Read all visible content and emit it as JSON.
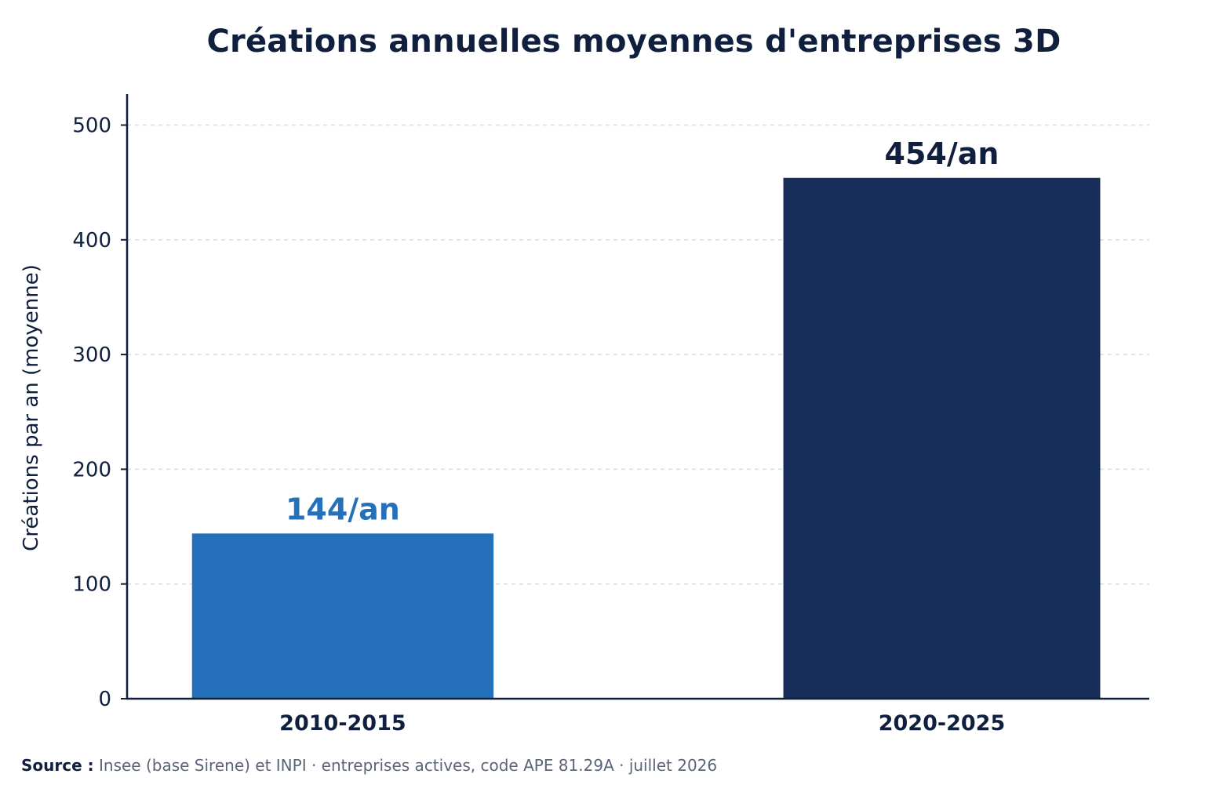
{
  "chart_data": {
    "type": "bar",
    "title": "Créations annuelles moyennes d'entreprises 3D",
    "xlabel": "",
    "ylabel": "Créations par an (moyenne)",
    "categories": [
      "2010-2015",
      "2020-2025"
    ],
    "values": [
      144,
      454
    ],
    "data_labels": [
      "144/an",
      "454/an"
    ],
    "bar_colors": [
      "#2570ba",
      "#162e59"
    ],
    "ylim": [
      0,
      527
    ],
    "yticks": [
      0,
      100,
      200,
      300,
      400,
      500
    ],
    "grid": true,
    "legend": "none"
  },
  "source": {
    "label": "Source :",
    "text": "Insee (base Sirene) et INPI · entreprises actives, code APE 81.29A · juillet 2026"
  },
  "colors": {
    "text": "#0f1f3d",
    "grid": "#d9dce2",
    "source_text": "#5b6478"
  }
}
